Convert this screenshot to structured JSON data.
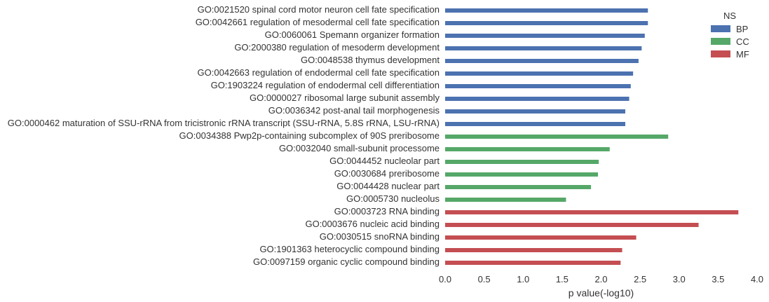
{
  "chart_data": {
    "type": "bar",
    "orientation": "horizontal",
    "xlabel": "p value(-log10)",
    "ylabel": "",
    "xlim": [
      0.0,
      4.0
    ],
    "xticks": [
      "0.0",
      "0.5",
      "1.0",
      "1.5",
      "2.0",
      "2.5",
      "3.0",
      "3.5",
      "4.0"
    ],
    "grid": false,
    "legend": {
      "title": "NS",
      "placement": "top-right",
      "entries": [
        {
          "name": "BP",
          "color": "#4c72b0"
        },
        {
          "name": "CC",
          "color": "#55a868"
        },
        {
          "name": "MF",
          "color": "#c44e52"
        }
      ]
    },
    "bars": [
      {
        "label": "GO:0021520 spinal cord motor neuron cell fate specification",
        "ns": "BP",
        "value": 2.6
      },
      {
        "label": "GO:0042661 regulation of mesodermal cell fate specification",
        "ns": "BP",
        "value": 2.6
      },
      {
        "label": "GO:0060061 Spemann organizer formation",
        "ns": "BP",
        "value": 2.56
      },
      {
        "label": "GO:2000380 regulation of mesoderm development",
        "ns": "BP",
        "value": 2.52
      },
      {
        "label": "GO:0048538 thymus development",
        "ns": "BP",
        "value": 2.48
      },
      {
        "label": "GO:0042663 regulation of endodermal cell fate specification",
        "ns": "BP",
        "value": 2.41
      },
      {
        "label": "GO:1903224 regulation of endodermal cell differentiation",
        "ns": "BP",
        "value": 2.38
      },
      {
        "label": "GO:0000027 ribosomal large subunit assembly",
        "ns": "BP",
        "value": 2.36
      },
      {
        "label": "GO:0036342 post-anal tail morphogenesis",
        "ns": "BP",
        "value": 2.31
      },
      {
        "label": "GO:0000462 maturation of SSU-rRNA from tricistronic rRNA transcript (SSU-rRNA, 5.8S rRNA, LSU-rRNA)",
        "ns": "BP",
        "value": 2.31
      },
      {
        "label": "GO:0034388 Pwp2p-containing subcomplex of 90S preribosome",
        "ns": "CC",
        "value": 2.86
      },
      {
        "label": "GO:0032040 small-subunit processome",
        "ns": "CC",
        "value": 2.11
      },
      {
        "label": "GO:0044452 nucleolar part",
        "ns": "CC",
        "value": 1.97
      },
      {
        "label": "GO:0030684 preribosome",
        "ns": "CC",
        "value": 1.96
      },
      {
        "label": "GO:0044428 nuclear part",
        "ns": "CC",
        "value": 1.87
      },
      {
        "label": "GO:0005730 nucleolus",
        "ns": "CC",
        "value": 1.55
      },
      {
        "label": "GO:0003723 RNA binding",
        "ns": "MF",
        "value": 3.76
      },
      {
        "label": "GO:0003676 nucleic acid binding",
        "ns": "MF",
        "value": 3.25
      },
      {
        "label": "GO:0030515 snoRNA binding",
        "ns": "MF",
        "value": 2.45
      },
      {
        "label": "GO:1901363 heterocyclic compound binding",
        "ns": "MF",
        "value": 2.27
      },
      {
        "label": "GO:0097159 organic cyclic compound binding",
        "ns": "MF",
        "value": 2.25
      }
    ]
  }
}
